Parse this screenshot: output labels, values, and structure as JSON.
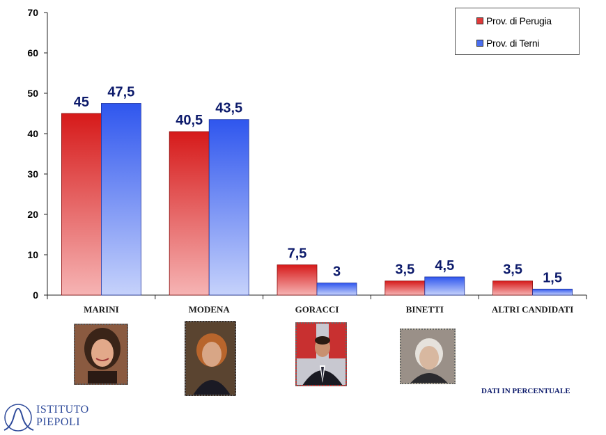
{
  "chart_data": {
    "type": "bar",
    "categories": [
      "MARINI",
      "MODENA",
      "GORACCI",
      "BINETTI",
      "ALTRI CANDIDATI"
    ],
    "series": [
      {
        "name": "Prov. di Perugia",
        "values": [
          45,
          40.5,
          7.5,
          3.5,
          3.5
        ],
        "labels": [
          "45",
          "40,5",
          "7,5",
          "3,5",
          "3,5"
        ],
        "color": "#e03a3a"
      },
      {
        "name": "Prov. di Terni",
        "values": [
          47.5,
          43.5,
          3,
          4.5,
          1.5
        ],
        "labels": [
          "47,5",
          "43,5",
          "3",
          "4,5",
          "1,5"
        ],
        "color": "#4a6ef0"
      }
    ],
    "yticks": [
      0,
      10,
      20,
      30,
      40,
      50,
      60,
      70
    ],
    "ylim": [
      0,
      70
    ],
    "grid": false,
    "legend_position": "top-right"
  },
  "legend": {
    "perugia": "Prov. di Perugia",
    "terni": "Prov. di Terni"
  },
  "note": "DATI IN PERCENTUALE",
  "logo": {
    "line1": "ISTITUTO",
    "line2": "PIEPOLI"
  },
  "photos": [
    "photo-marini",
    "photo-modena",
    "photo-goracci",
    "photo-binetti"
  ],
  "colors": {
    "red": "#e03a3a",
    "blue": "#4a6ef0",
    "label": "#0c1a6b"
  }
}
